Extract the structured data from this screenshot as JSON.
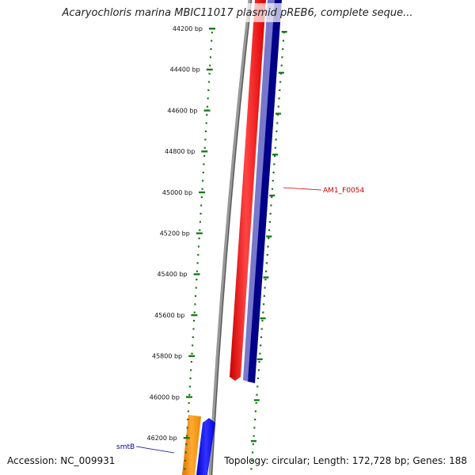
{
  "title": "Acaryochloris marina MBIC11017 plasmid pREB6, complete seque...",
  "footer": {
    "accession": "Accession: NC_009931",
    "summary": "Topology: circular; Length: 172,728 bp; Genes: 188"
  },
  "colors": {
    "tick": "#1a7a1a",
    "backbone": "#888888",
    "red_gene": "#ff0000",
    "navy_gene": "#000088",
    "lightblue_gene": "#7777cc",
    "orange_gene": "#ff8800",
    "blue_gene": "#0000ff",
    "label_red": "#cc0000",
    "label_blue": "#0000aa"
  },
  "ticks": [
    {
      "label": "44200 bp"
    },
    {
      "label": "44400 bp"
    },
    {
      "label": "44600 bp"
    },
    {
      "label": "44800 bp"
    },
    {
      "label": "45000 bp"
    },
    {
      "label": "45200 bp"
    },
    {
      "label": "45400 bp"
    },
    {
      "label": "45600 bp"
    },
    {
      "label": "45800 bp"
    },
    {
      "label": "46000 bp"
    },
    {
      "label": "46200 bp"
    }
  ],
  "genes": [
    {
      "name": "AM1_F0054",
      "color": "#cc0000"
    },
    {
      "name": "smtB",
      "color": "#0000aa"
    }
  ]
}
